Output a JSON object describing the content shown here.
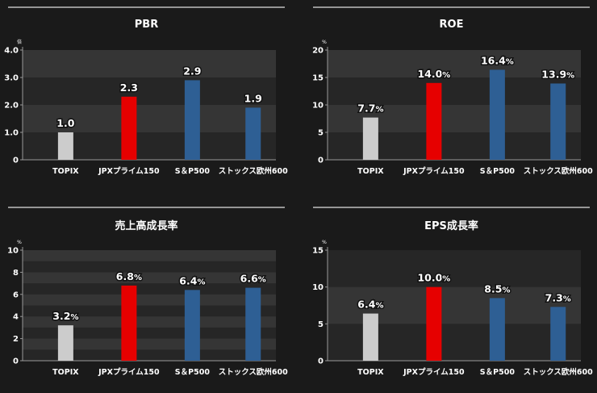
{
  "chart_data": [
    {
      "type": "bar",
      "title": "PBR",
      "unit_label": "倍",
      "categories": [
        "TOPIX",
        "JPXプライム150",
        "S＆P500",
        "ストックス欧州600"
      ],
      "values": [
        1.0,
        2.3,
        2.9,
        1.9
      ],
      "value_labels": [
        "1.0",
        "2.3",
        "2.9",
        "1.9"
      ],
      "value_suffix": "",
      "yticks": [
        "0",
        "1.0",
        "2.0",
        "3.0",
        "4.0"
      ],
      "ylim": [
        0,
        4
      ],
      "tick_step": 1,
      "band_step": 1,
      "bar_colors": [
        "#cccccc",
        "#e60000",
        "#2e5f94",
        "#2e5f94"
      ]
    },
    {
      "type": "bar",
      "title": "ROE",
      "unit_label": "%",
      "categories": [
        "TOPIX",
        "JPXプライム150",
        "S＆P500",
        "ストックス欧州600"
      ],
      "values": [
        7.7,
        14.0,
        16.4,
        13.9
      ],
      "value_labels": [
        "7.7",
        "14.0",
        "16.4",
        "13.9"
      ],
      "value_suffix": "%",
      "yticks": [
        "0",
        "5",
        "10",
        "15",
        "20"
      ],
      "ylim": [
        0,
        20
      ],
      "tick_step": 5,
      "band_step": 5,
      "bar_colors": [
        "#cccccc",
        "#e60000",
        "#2e5f94",
        "#2e5f94"
      ]
    },
    {
      "type": "bar",
      "title": "売上高成長率",
      "unit_label": "%",
      "categories": [
        "TOPIX",
        "JPXプライム150",
        "S＆P500",
        "ストックス欧州600"
      ],
      "values": [
        3.2,
        6.8,
        6.4,
        6.6
      ],
      "value_labels": [
        "3.2",
        "6.8",
        "6.4",
        "6.6"
      ],
      "value_suffix": "%",
      "yticks": [
        "0",
        "2",
        "4",
        "6",
        "8",
        "10"
      ],
      "ylim": [
        0,
        10
      ],
      "tick_step": 2,
      "band_step": 1,
      "bar_colors": [
        "#cccccc",
        "#e60000",
        "#2e5f94",
        "#2e5f94"
      ]
    },
    {
      "type": "bar",
      "title": "EPS成長率",
      "unit_label": "%",
      "categories": [
        "TOPIX",
        "JPXプライム150",
        "S＆P500",
        "ストックス欧州600"
      ],
      "values": [
        6.4,
        10.0,
        8.5,
        7.3
      ],
      "value_labels": [
        "6.4",
        "10.0",
        "8.5",
        "7.3"
      ],
      "value_suffix": "%",
      "yticks": [
        "0",
        "5",
        "10",
        "15"
      ],
      "ylim": [
        0,
        15
      ],
      "tick_step": 5,
      "band_step": 5,
      "bar_colors": [
        "#cccccc",
        "#e60000",
        "#2e5f94",
        "#2e5f94"
      ]
    }
  ]
}
